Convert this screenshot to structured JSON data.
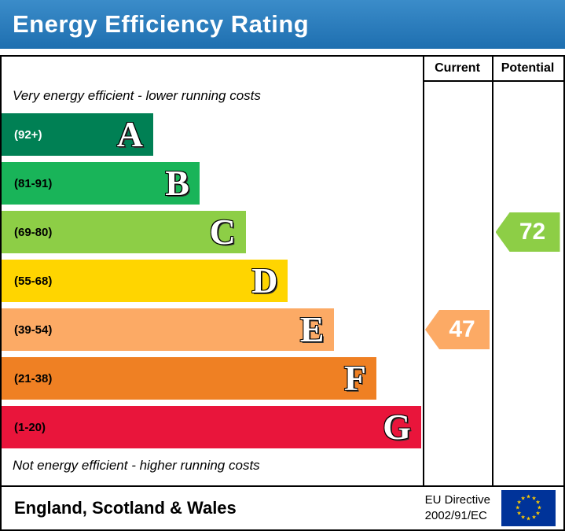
{
  "title": "Energy Efficiency Rating",
  "columns": {
    "current": "Current",
    "potential": "Potential"
  },
  "top_note": "Very energy efficient - lower running costs",
  "bottom_note": "Not energy efficient - higher running costs",
  "footer": {
    "region": "England, Scotland & Wales",
    "directive_line1": "EU Directive",
    "directive_line2": "2002/91/EC",
    "flag_colors": {
      "field": "#003399",
      "stars": "#ffcc00"
    }
  },
  "chart_data": {
    "type": "bar",
    "title": "Energy Efficiency Rating",
    "bands": [
      {
        "letter": "A",
        "range": "(92+)",
        "color": "#008054",
        "range_color": "#ffffff",
        "width_pct": 36
      },
      {
        "letter": "B",
        "range": "(81-91)",
        "color": "#19b459",
        "range_color": "#000000",
        "width_pct": 47
      },
      {
        "letter": "C",
        "range": "(69-80)",
        "color": "#8dce46",
        "range_color": "#000000",
        "width_pct": 58
      },
      {
        "letter": "D",
        "range": "(55-68)",
        "color": "#ffd500",
        "range_color": "#000000",
        "width_pct": 68
      },
      {
        "letter": "E",
        "range": "(39-54)",
        "color": "#fcaa65",
        "range_color": "#000000",
        "width_pct": 79
      },
      {
        "letter": "F",
        "range": "(21-38)",
        "color": "#ef8023",
        "range_color": "#000000",
        "width_pct": 89
      },
      {
        "letter": "G",
        "range": "(1-20)",
        "color": "#e9153b",
        "range_color": "#000000",
        "width_pct": 99.6
      }
    ],
    "current": {
      "value": 47,
      "band": "E",
      "color": "#fcaa65"
    },
    "potential": {
      "value": 72,
      "band": "C",
      "color": "#8dce46"
    }
  }
}
